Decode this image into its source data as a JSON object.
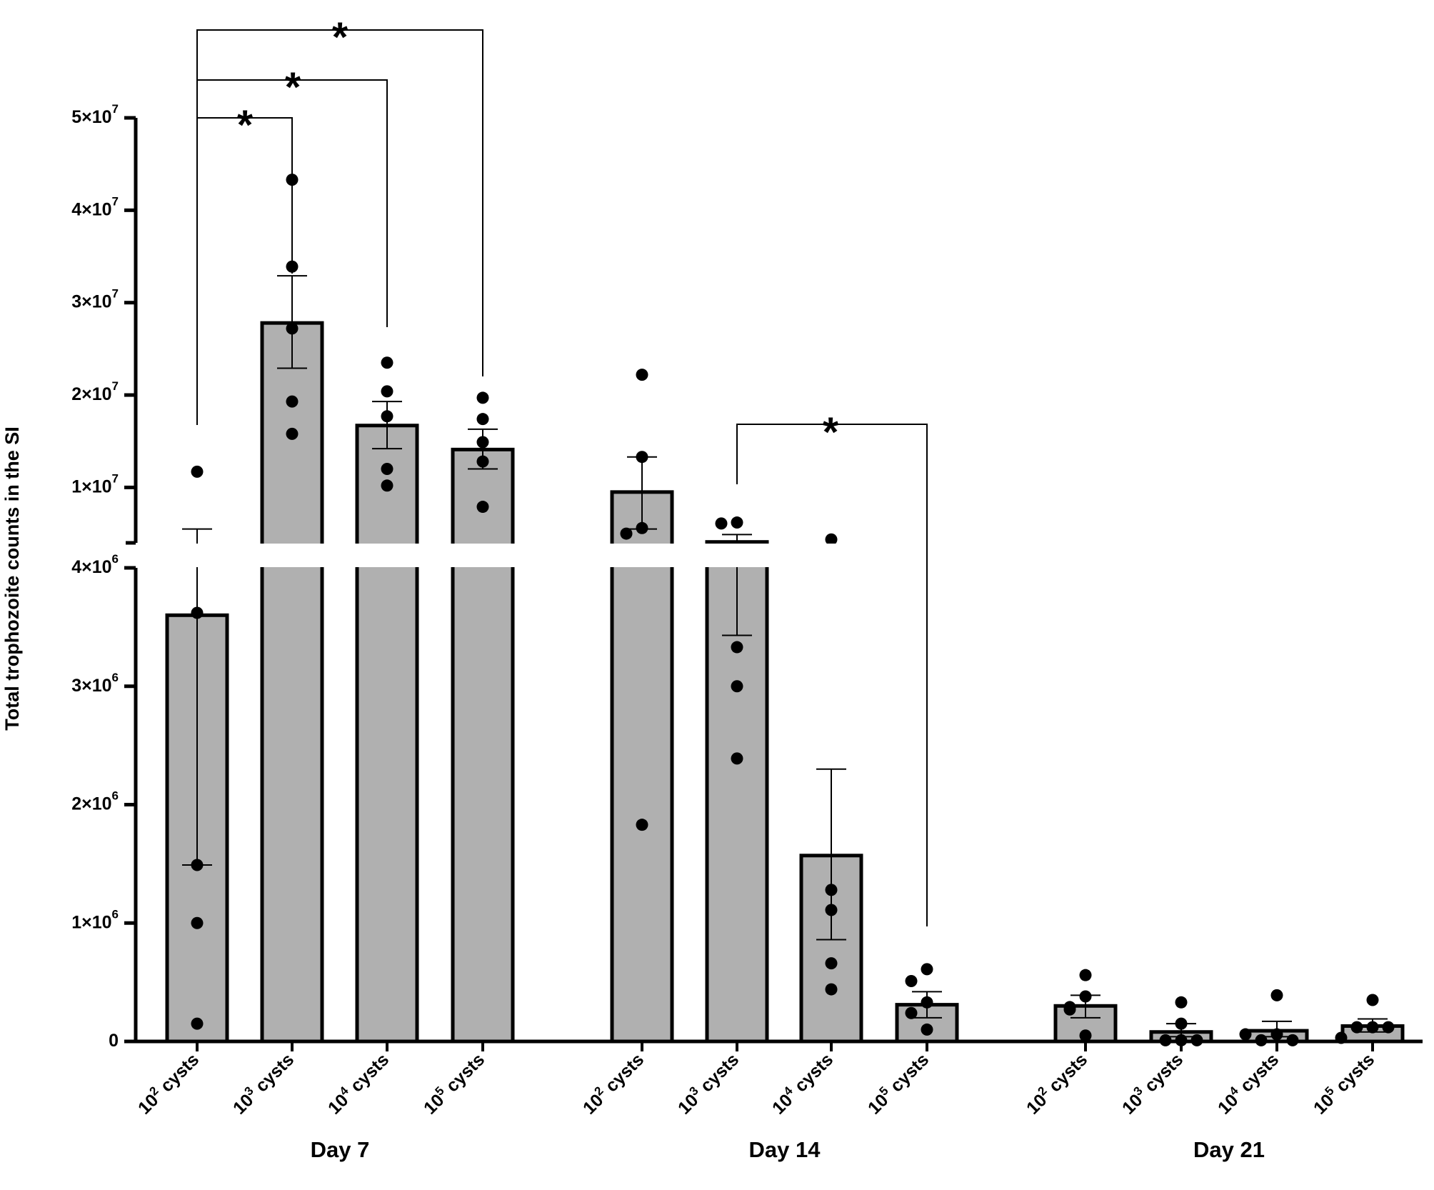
{
  "chart_data": {
    "type": "bar",
    "ylabel": "Total trophozoite counts in the SI",
    "y_axis_break": {
      "lower": {
        "range": [
          0,
          4000000
        ],
        "ticks": [
          0,
          1000000,
          2000000,
          3000000,
          4000000
        ],
        "tick_labels": [
          "0",
          "1×10⁶",
          "2×10⁶",
          "3×10⁶",
          "4×10⁶"
        ]
      },
      "upper": {
        "range": [
          4000000,
          50000000
        ],
        "ticks": [
          10000000,
          20000000,
          30000000,
          40000000,
          50000000
        ],
        "tick_labels": [
          "1×10⁷",
          "2×10⁷",
          "3×10⁷",
          "4×10⁷",
          "5×10⁷"
        ]
      }
    },
    "groups": [
      {
        "label": "Day 7",
        "bars": [
          {
            "label": "10² cysts",
            "mean": 3600000,
            "sem_low": 1490000,
            "sem_high": 5500000,
            "points": [
              11700000,
              3620000,
              1490000,
              1000000,
              150000
            ]
          },
          {
            "label": "10³ cysts",
            "mean": 27800000,
            "sem_low": 22900000,
            "sem_high": 32900000,
            "points": [
              43300000,
              33900000,
              27200000,
              19300000,
              15800000
            ]
          },
          {
            "label": "10⁴ cysts",
            "mean": 16700000,
            "sem_low": 14200000,
            "sem_high": 19300000,
            "points": [
              23500000,
              20400000,
              17700000,
              12000000,
              10200000
            ]
          },
          {
            "label": "10⁵ cysts",
            "mean": 14100000,
            "sem_low": 12000000,
            "sem_high": 16300000,
            "points": [
              19700000,
              17400000,
              14900000,
              12800000,
              7900000
            ]
          }
        ]
      },
      {
        "label": "Day 14",
        "bars": [
          {
            "label": "10² cysts",
            "mean": 9500000,
            "sem_low": 5500000,
            "sem_high": 13300000,
            "points": [
              22200000,
              13300000,
              5600000,
              5000000,
              1830000
            ]
          },
          {
            "label": "10³ cysts",
            "mean": 4100000,
            "sem_low": 3430000,
            "sem_high": 4900000,
            "points": [
              6200000,
              6100000,
              3330000,
              3000000,
              2390000
            ]
          },
          {
            "label": "10⁴ cysts",
            "mean": 1570000,
            "sem_low": 860000,
            "sem_high": 2300000,
            "points": [
              4370000,
              1280000,
              1110000,
              660000,
              440000
            ]
          },
          {
            "label": "10⁵ cysts",
            "mean": 310000,
            "sem_low": 200000,
            "sem_high": 420000,
            "points": [
              610000,
              510000,
              330000,
              240000,
              100000
            ]
          }
        ]
      },
      {
        "label": "Day 21",
        "bars": [
          {
            "label": "10² cysts",
            "mean": 300000,
            "sem_low": 200000,
            "sem_high": 390000,
            "points": [
              560000,
              380000,
              290000,
              270000,
              50000
            ]
          },
          {
            "label": "10³ cysts",
            "mean": 80000,
            "sem_low": 40000,
            "sem_high": 150000,
            "points": [
              330000,
              150000,
              10000,
              10000,
              10000
            ]
          },
          {
            "label": "10⁴ cysts",
            "mean": 90000,
            "sem_low": 40000,
            "sem_high": 170000,
            "points": [
              390000,
              60000,
              10000,
              10000,
              60000
            ]
          },
          {
            "label": "10⁵ cysts",
            "mean": 130000,
            "sem_low": 80000,
            "sem_high": 190000,
            "points": [
              350000,
              120000,
              120000,
              120000,
              30000
            ]
          }
        ]
      }
    ],
    "significance": [
      {
        "from": [
          0,
          0
        ],
        "to": [
          0,
          1
        ],
        "label": "*"
      },
      {
        "from": [
          0,
          0
        ],
        "to": [
          0,
          2
        ],
        "label": "*"
      },
      {
        "from": [
          0,
          0
        ],
        "to": [
          0,
          3
        ],
        "label": "*"
      },
      {
        "from": [
          1,
          1
        ],
        "to": [
          1,
          3
        ],
        "label": "*"
      }
    ],
    "colors": {
      "bar_fill": "#b0b0b0",
      "bar_stroke": "#000000",
      "point": "#000000",
      "axis": "#000000"
    }
  }
}
